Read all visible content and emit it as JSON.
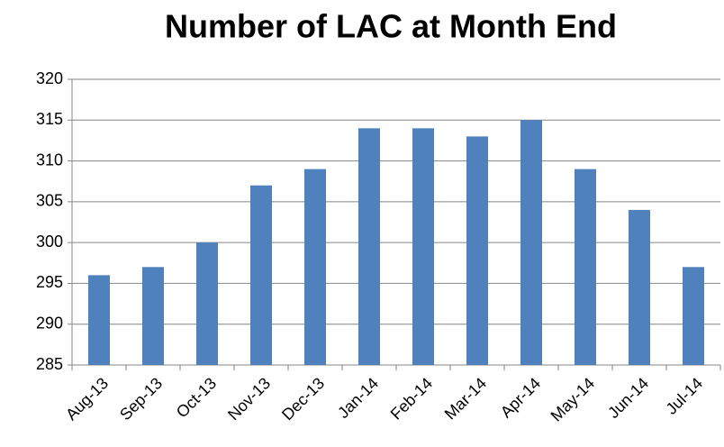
{
  "chart_data": {
    "type": "bar",
    "title": "Number of LAC at Month End",
    "categories": [
      "Aug-13",
      "Sep-13",
      "Oct-13",
      "Nov-13",
      "Dec-13",
      "Jan-14",
      "Feb-14",
      "Mar-14",
      "Apr-14",
      "May-14",
      "Jun-14",
      "Jul-14"
    ],
    "values": [
      296,
      297,
      300,
      307,
      309,
      314,
      314,
      313,
      315,
      309,
      304,
      297
    ],
    "color": "#4f81bd",
    "ylim": [
      285,
      320
    ],
    "yticks": [
      285,
      290,
      295,
      300,
      305,
      310,
      315,
      320
    ],
    "grid": true
  }
}
